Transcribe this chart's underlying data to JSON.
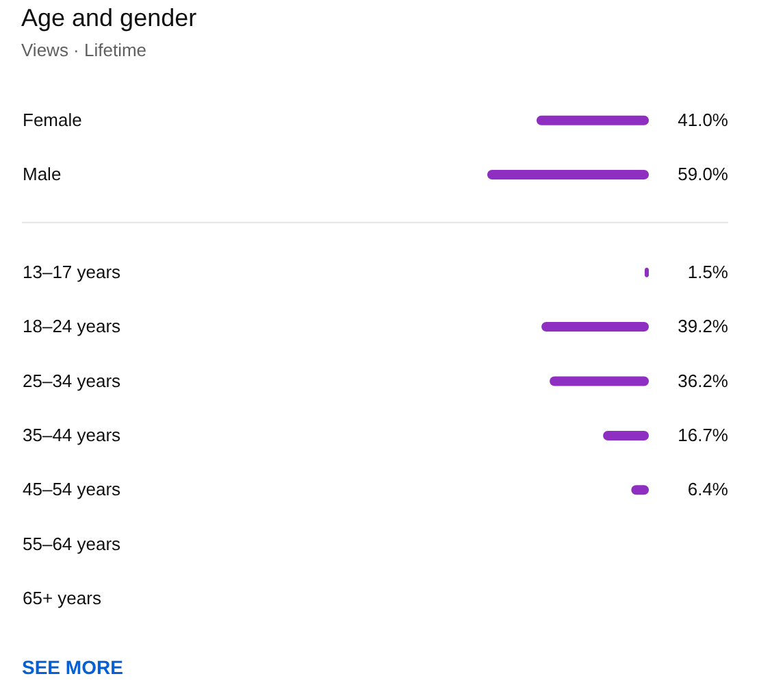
{
  "chart_data": [
    {
      "type": "bar",
      "orientation": "horizontal",
      "title": "Age and gender",
      "subtitle": "Views · Lifetime",
      "categories": [
        "Female",
        "Male"
      ],
      "values": [
        41.0,
        59.0
      ],
      "color": "#8e2fc1",
      "value_labels": [
        "41.0%",
        "59.0%"
      ]
    },
    {
      "type": "bar",
      "orientation": "horizontal",
      "categories": [
        "13–17 years",
        "18–24 years",
        "25–34 years",
        "35–44 years",
        "45–54 years",
        "55–64 years",
        "65+ years"
      ],
      "values": [
        1.5,
        39.2,
        36.2,
        16.7,
        6.4,
        null,
        null
      ],
      "color": "#8e2fc1",
      "value_labels": [
        "1.5%",
        "39.2%",
        "36.2%",
        "16.7%",
        "6.4%",
        null,
        null
      ],
      "annotations": [
        "SEE MORE"
      ]
    }
  ]
}
